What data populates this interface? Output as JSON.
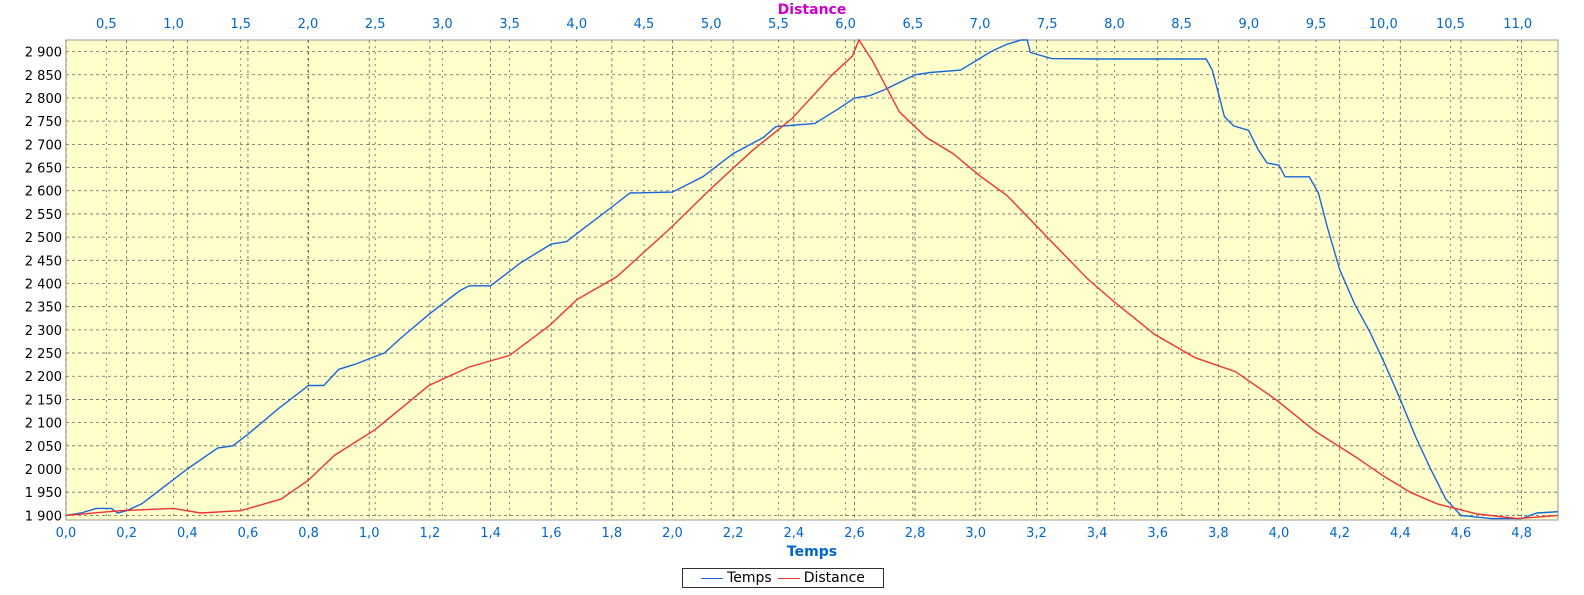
{
  "colors": {
    "plot_bg": "#FFFFCC",
    "axis_text": "#0066CC",
    "top_axis_text": "#CC00CC",
    "grid": "#666666",
    "temps": "#1a66d9",
    "distance": "#ee3333"
  },
  "chart_data": {
    "type": "line",
    "xlabel": "Temps",
    "x2label": "Distance",
    "xlim": [
      0.0,
      4.92
    ],
    "x2lim": [
      0.2,
      11.3
    ],
    "ylim": [
      1890,
      2925
    ],
    "x_ticks": [
      "0,0",
      "0,2",
      "0,4",
      "0,6",
      "0,8",
      "1,0",
      "1,2",
      "1,4",
      "1,6",
      "1,8",
      "2,0",
      "2,2",
      "2,4",
      "2,6",
      "2,8",
      "3,0",
      "3,2",
      "3,4",
      "3,6",
      "3,8",
      "4,0",
      "4,2",
      "4,4",
      "4,6",
      "4,8"
    ],
    "x_tick_values": [
      0.0,
      0.2,
      0.4,
      0.6,
      0.8,
      1.0,
      1.2,
      1.4,
      1.6,
      1.8,
      2.0,
      2.2,
      2.4,
      2.6,
      2.8,
      3.0,
      3.2,
      3.4,
      3.6,
      3.8,
      4.0,
      4.2,
      4.4,
      4.6,
      4.8
    ],
    "x2_ticks": [
      "0,5",
      "1,0",
      "1,5",
      "2,0",
      "2,5",
      "3,0",
      "3,5",
      "4,0",
      "4,5",
      "5,0",
      "5,5",
      "6,0",
      "6,5",
      "7,0",
      "7,5",
      "8,0",
      "8,5",
      "9,0",
      "9,5",
      "10,0",
      "10,5",
      "11,0"
    ],
    "x2_tick_values": [
      0.5,
      1.0,
      1.5,
      2.0,
      2.5,
      3.0,
      3.5,
      4.0,
      4.5,
      5.0,
      5.5,
      6.0,
      6.5,
      7.0,
      7.5,
      8.0,
      8.5,
      9.0,
      9.5,
      10.0,
      10.5,
      11.0
    ],
    "y_ticks": [
      "1 900",
      "1 950",
      "2 000",
      "2 050",
      "2 100",
      "2 150",
      "2 200",
      "2 250",
      "2 300",
      "2 350",
      "2 400",
      "2 450",
      "2 500",
      "2 550",
      "2 600",
      "2 650",
      "2 700",
      "2 750",
      "2 800",
      "2 850",
      "2 900"
    ],
    "y_tick_values": [
      1900,
      1950,
      2000,
      2050,
      2100,
      2150,
      2200,
      2250,
      2300,
      2350,
      2400,
      2450,
      2500,
      2550,
      2600,
      2650,
      2700,
      2750,
      2800,
      2850,
      2900
    ],
    "grid": true,
    "legend": "bottom-center",
    "series": [
      {
        "name": "Temps",
        "axis": "bottom",
        "x": [
          0.0,
          0.05,
          0.1,
          0.15,
          0.17,
          0.2,
          0.25,
          0.3,
          0.4,
          0.5,
          0.55,
          0.6,
          0.7,
          0.8,
          0.85,
          0.9,
          0.95,
          1.05,
          1.1,
          1.2,
          1.3,
          1.33,
          1.4,
          1.5,
          1.6,
          1.65,
          1.7,
          1.8,
          1.86,
          2.0,
          2.1,
          2.2,
          2.3,
          2.34,
          2.47,
          2.55,
          2.6,
          2.65,
          2.7,
          2.8,
          2.85,
          2.95,
          3.0,
          3.05,
          3.1,
          3.15,
          3.17,
          3.18,
          3.25,
          3.4,
          3.6,
          3.76,
          3.78,
          3.8,
          3.82,
          3.85,
          3.9,
          3.93,
          3.96,
          4.0,
          4.02,
          4.1,
          4.13,
          4.16,
          4.2,
          4.25,
          4.3,
          4.35,
          4.4,
          4.45,
          4.5,
          4.55,
          4.6,
          4.7,
          4.8,
          4.85,
          4.92
        ],
        "y": [
          1900,
          1905,
          1915,
          1915,
          1905,
          1910,
          1925,
          1950,
          2000,
          2045,
          2050,
          2075,
          2130,
          2180,
          2180,
          2215,
          2225,
          2250,
          2280,
          2335,
          2385,
          2395,
          2395,
          2445,
          2485,
          2490,
          2515,
          2565,
          2595,
          2597,
          2630,
          2680,
          2715,
          2738,
          2745,
          2778,
          2800,
          2805,
          2818,
          2850,
          2855,
          2860,
          2880,
          2900,
          2915,
          2925,
          2925,
          2898,
          2885,
          2884,
          2884,
          2884,
          2860,
          2810,
          2760,
          2740,
          2730,
          2690,
          2660,
          2655,
          2630,
          2630,
          2595,
          2520,
          2430,
          2355,
          2295,
          2225,
          2150,
          2070,
          2000,
          1935,
          1900,
          1893,
          1893,
          1905,
          1908
        ]
      },
      {
        "name": "Distance",
        "axis": "top",
        "x": [
          0.2,
          0.6,
          1.0,
          1.2,
          1.5,
          1.8,
          2.0,
          2.2,
          2.5,
          2.9,
          3.2,
          3.5,
          3.8,
          4.0,
          4.3,
          4.7,
          5.0,
          5.3,
          5.6,
          5.9,
          6.05,
          6.1,
          6.2,
          6.4,
          6.6,
          6.8,
          7.0,
          7.2,
          7.5,
          7.8,
          8.0,
          8.3,
          8.6,
          8.9,
          9.2,
          9.5,
          9.8,
          10.0,
          10.2,
          10.4,
          10.7,
          11.0,
          11.3
        ],
        "y": [
          1900,
          1910,
          1915,
          1905,
          1910,
          1935,
          1975,
          2030,
          2085,
          2180,
          2220,
          2245,
          2310,
          2365,
          2415,
          2520,
          2605,
          2685,
          2755,
          2850,
          2890,
          2925,
          2880,
          2770,
          2715,
          2680,
          2632,
          2590,
          2500,
          2410,
          2360,
          2290,
          2240,
          2210,
          2150,
          2080,
          2025,
          1985,
          1950,
          1925,
          1903,
          1893,
          1900
        ]
      }
    ]
  }
}
